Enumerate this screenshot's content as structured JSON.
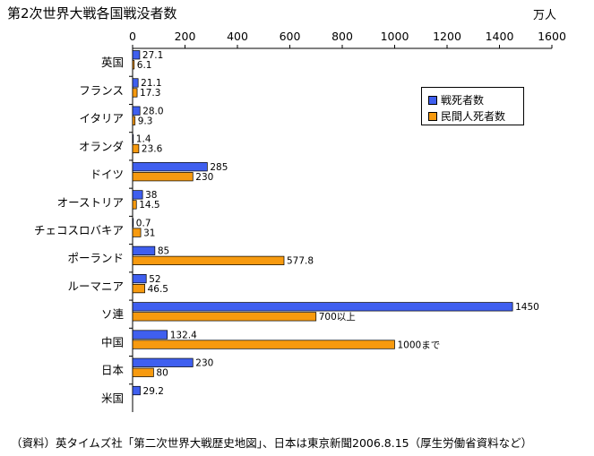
{
  "title": "第2次世界大戦各国戦没者数",
  "unit_label": "万人",
  "source_note": "（資料）英タイムズ社「第二次世界大戦歴史地図」、日本は東京新聞2006.8.15（厚生労働省資料など）",
  "chart_data": {
    "type": "bar",
    "orientation": "horizontal",
    "title": "第2次世界大戦各国戦没者数",
    "xlim": [
      0,
      1600
    ],
    "x_ticks": [
      0,
      200,
      400,
      600,
      800,
      1000,
      1200,
      1400,
      1600
    ],
    "x_unit": "万人",
    "grid": false,
    "legend_position": "top-right",
    "categories": [
      "英国",
      "フランス",
      "イタリア",
      "オランダ",
      "ドイツ",
      "オーストリア",
      "チェコスロバキア",
      "ポーランド",
      "ルーマニア",
      "ソ連",
      "中国",
      "日本",
      "米国"
    ],
    "series": [
      {
        "name": "戦死者数",
        "color": "#3f5fef",
        "values": [
          27.1,
          21.1,
          28.0,
          1.4,
          285,
          38,
          0.7,
          85,
          52,
          1450,
          132.4,
          230,
          29.2
        ],
        "labels": [
          "27.1",
          "21.1",
          "28.0",
          "1.4",
          "285",
          "38",
          "0.7",
          "85",
          "52",
          "1450",
          "132.4",
          "230",
          "29.2"
        ]
      },
      {
        "name": "民間人死者数",
        "color": "#f79a0f",
        "values": [
          6.1,
          17.3,
          9.3,
          23.6,
          230,
          14.5,
          31,
          577.8,
          46.5,
          700,
          1000,
          80,
          null
        ],
        "labels": [
          "6.1",
          "17.3",
          "9.3",
          "23.6",
          "230",
          "14.5",
          "31",
          "577.8",
          "46.5",
          "700以上",
          "1000まで",
          "80",
          null
        ]
      }
    ]
  }
}
